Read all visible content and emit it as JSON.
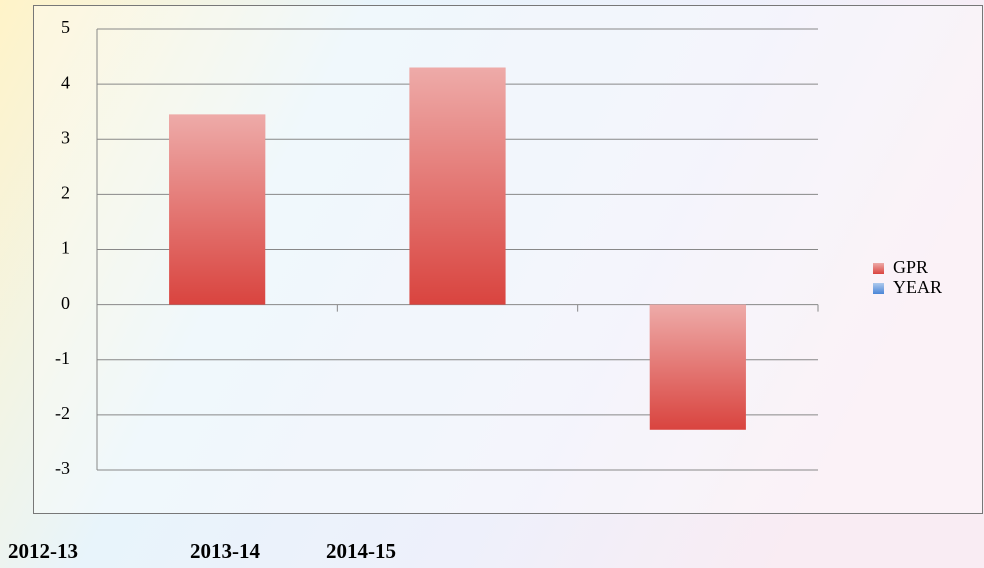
{
  "chart_data": {
    "type": "bar",
    "categories": [
      "2012-13",
      "2013-14",
      "2014-15"
    ],
    "series": [
      {
        "name": "GPR",
        "color": "#d9443f",
        "values": [
          3.45,
          4.3,
          -2.27
        ]
      },
      {
        "name": "YEAR",
        "color": "#4a86d8",
        "values": [
          null,
          null,
          null
        ]
      }
    ],
    "ylim": [
      -3,
      5
    ],
    "yticks": [
      -3,
      -2,
      -1,
      0,
      1,
      2,
      3,
      4,
      5
    ],
    "grid": true,
    "legend": "right"
  }
}
